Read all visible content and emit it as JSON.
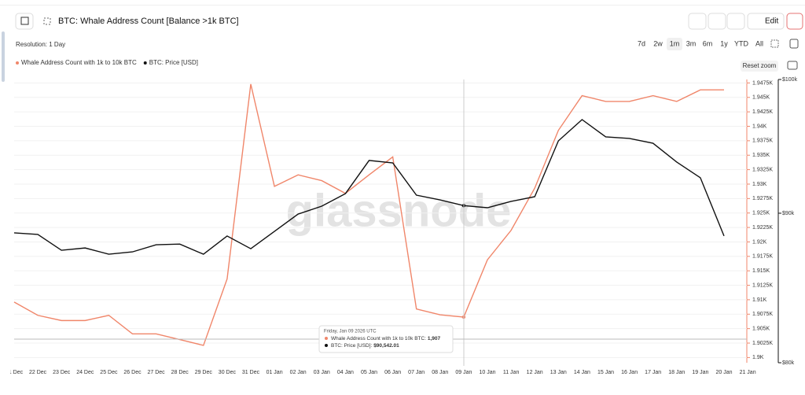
{
  "header": {
    "title": "BTC: Whale Address Count [Balance >1k BTC]",
    "edit": "Edit"
  },
  "toolbar": {
    "resolution": "Resolution: 1 Day",
    "ranges": [
      "7d",
      "2w",
      "1m",
      "3m",
      "6m",
      "1y",
      "YTD",
      "All"
    ],
    "reset_zoom": "Reset zoom"
  },
  "chart_data": {
    "type": "line",
    "watermark": "glassnode",
    "categories": [
      "21 Dec",
      "22 Dec",
      "23 Dec",
      "24 Dec",
      "25 Dec",
      "26 Dec",
      "27 Dec",
      "28 Dec",
      "29 Dec",
      "30 Dec",
      "31 Dec",
      "01 Jan",
      "02 Jan",
      "03 Jan",
      "04 Jan",
      "05 Jan",
      "06 Jan",
      "07 Jan",
      "08 Jan",
      "09 Jan",
      "10 Jan",
      "11 Jan",
      "12 Jan",
      "13 Jan",
      "14 Jan",
      "15 Jan",
      "16 Jan",
      "17 Jan",
      "18 Jan",
      "19 Jan",
      "20 Jan",
      "21 Jan"
    ],
    "series": [
      {
        "name": "Whale Address Count with 1k to 10k BTC",
        "color": "#f0866a",
        "axis": "y",
        "values": [
          1909.6,
          1907.3,
          1906.4,
          1906.4,
          1907.3,
          1904.1,
          1904.1,
          1903.1,
          1902.1,
          1913.6,
          1947.3,
          1929.6,
          1931.6,
          1930.6,
          1928.4,
          1931.6,
          1934.7,
          1908.4,
          1907.4,
          1907,
          1916.9,
          1922,
          1929.3,
          1939.3,
          1945.3,
          1944.3,
          1944.3,
          1945.3,
          1944.3,
          1946.3,
          1946.3,
          null
        ]
      },
      {
        "name": "BTC: Price [USD]",
        "color": "#111111",
        "axis": "y2",
        "values": [
          88620,
          88510,
          87410,
          87570,
          87140,
          87300,
          87790,
          87840,
          87140,
          88400,
          87520,
          88720,
          89940,
          90500,
          91400,
          93820,
          93640,
          91290,
          90950,
          90542.01,
          90390,
          90840,
          91180,
          95280,
          96890,
          95580,
          95460,
          95100,
          93700,
          92550,
          88400,
          null
        ]
      }
    ],
    "ylim": [
      1899.1,
      1948.1
    ],
    "yticks": [
      {
        "value": 1900,
        "label": "1.9K"
      },
      {
        "value": 1902.5,
        "label": "1.9025K"
      },
      {
        "value": 1905,
        "label": "1.905K"
      },
      {
        "value": 1907.5,
        "label": "1.9075K"
      },
      {
        "value": 1910,
        "label": "1.91K"
      },
      {
        "value": 1912.5,
        "label": "1.9125K"
      },
      {
        "value": 1915,
        "label": "1.915K"
      },
      {
        "value": 1917.5,
        "label": "1.9175K"
      },
      {
        "value": 1920,
        "label": "1.92K"
      },
      {
        "value": 1922.5,
        "label": "1.9225K"
      },
      {
        "value": 1925,
        "label": "1.925K"
      },
      {
        "value": 1927.5,
        "label": "1.9275K"
      },
      {
        "value": 1930,
        "label": "1.93K"
      },
      {
        "value": 1932.5,
        "label": "1.9325K"
      },
      {
        "value": 1935,
        "label": "1.935K"
      },
      {
        "value": 1937.5,
        "label": "1.9375K"
      },
      {
        "value": 1940,
        "label": "1.94K"
      },
      {
        "value": 1942.5,
        "label": "1.9425K"
      },
      {
        "value": 1945,
        "label": "1.945K"
      },
      {
        "value": 1947.5,
        "label": "1.9475K"
      }
    ],
    "y2lim": [
      80000,
      100000
    ],
    "y2log": true,
    "y2ticks": [
      {
        "value": 80000,
        "label": "$80k"
      },
      {
        "value": 90000,
        "label": "$90k"
      },
      {
        "value": 100000,
        "label": "$100k"
      }
    ],
    "grid": true,
    "tooltip": {
      "date": "Friday, Jan 09 2026 UTC",
      "lines": [
        {
          "label": "Whale Address Count with 1k to 10k BTC: ",
          "value": "1,907"
        },
        {
          "label": "BTC: Price [USD]: ",
          "value": "$90,542.01"
        }
      ]
    }
  }
}
